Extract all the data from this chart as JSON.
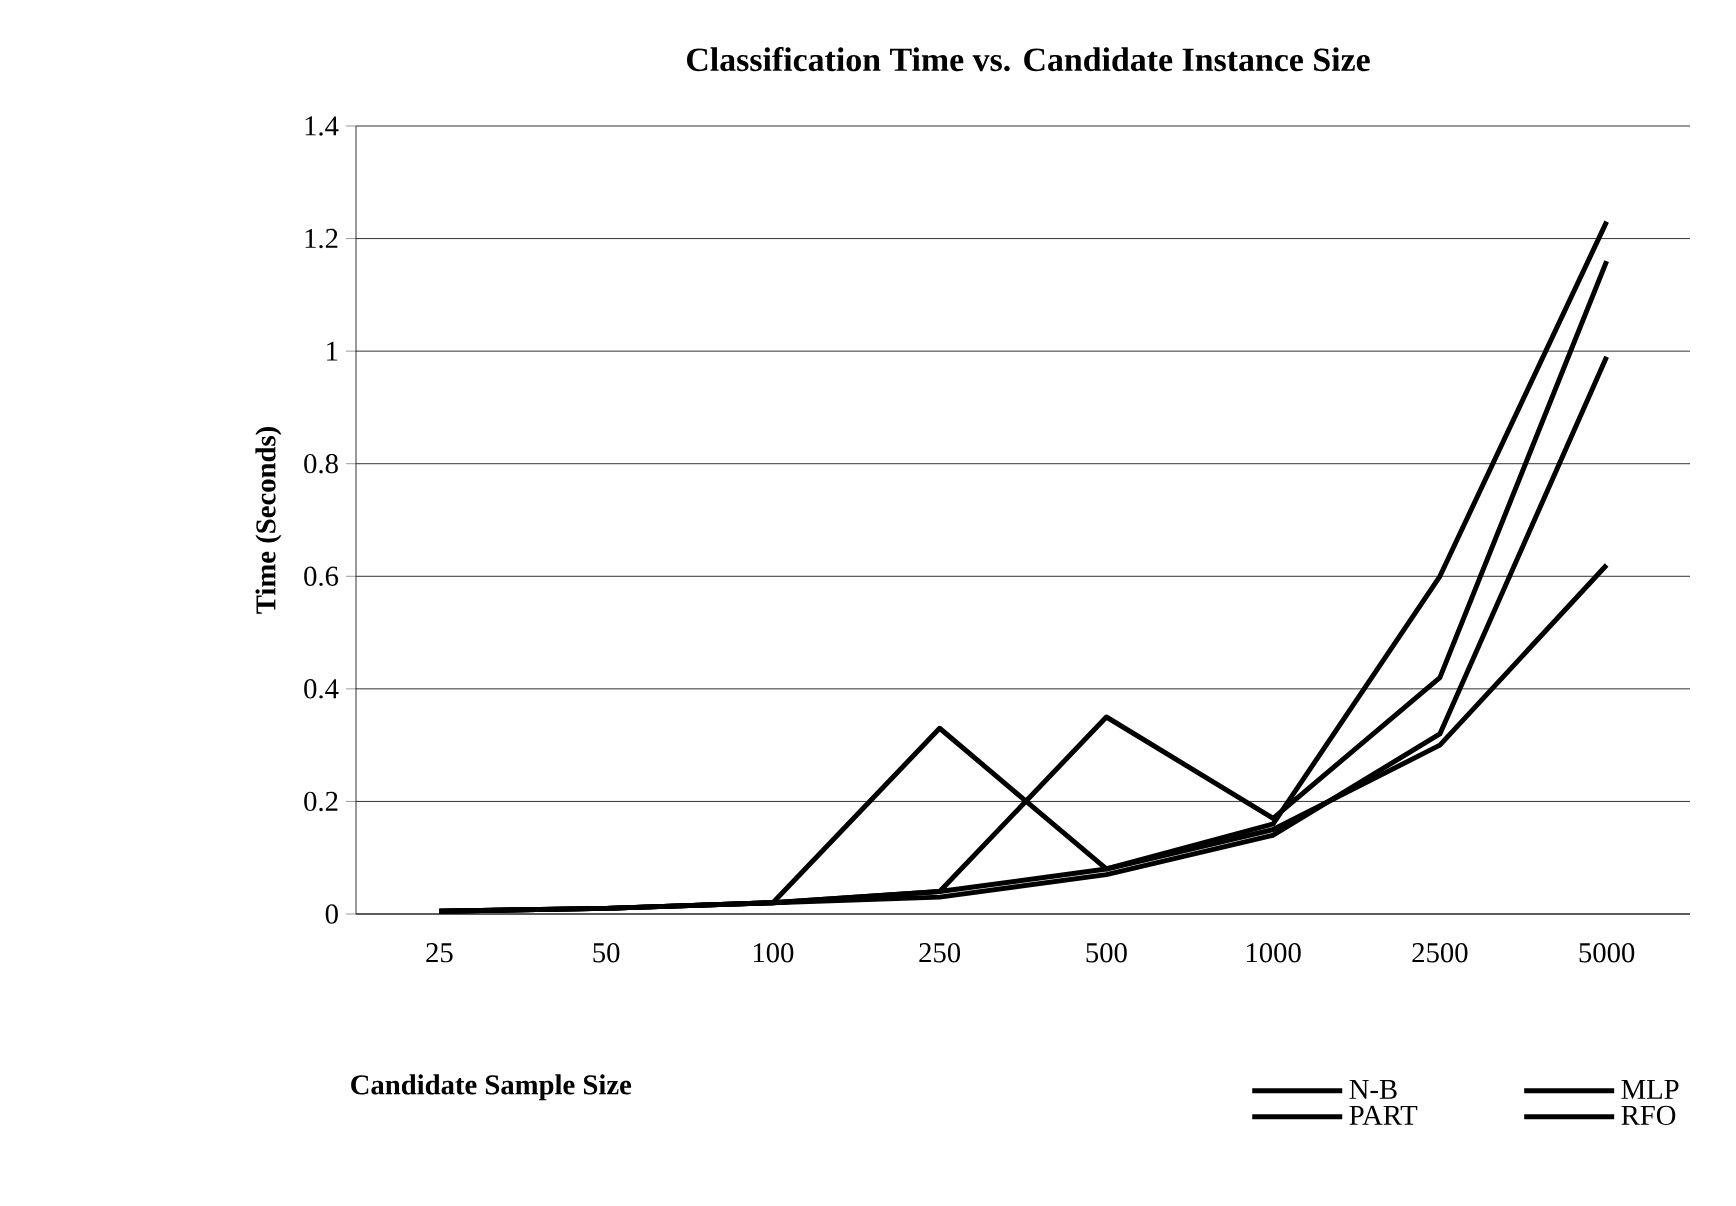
{
  "chart_data": {
    "type": "line",
    "title": "Classification Time vs. Candidate Instance Size",
    "xlabel": "Candidate Sample Size",
    "ylabel": "Time (Seconds)",
    "categories": [
      "25",
      "50",
      "100",
      "250",
      "500",
      "1000",
      "2500",
      "5000"
    ],
    "series": [
      {
        "name": "N-B",
        "color": "#000000",
        "values": [
          0.005,
          0.01,
          0.02,
          0.33,
          0.08,
          0.15,
          0.3,
          0.62
        ]
      },
      {
        "name": "MLP",
        "color": "#000000",
        "values": [
          0.005,
          0.01,
          0.02,
          0.04,
          0.35,
          0.17,
          0.42,
          1.16
        ]
      },
      {
        "name": "PART",
        "color": "#000000",
        "values": [
          0.005,
          0.01,
          0.02,
          0.04,
          0.08,
          0.16,
          0.6,
          1.23
        ]
      },
      {
        "name": "RFO",
        "color": "#000000",
        "values": [
          0.005,
          0.01,
          0.02,
          0.03,
          0.07,
          0.14,
          0.32,
          0.99
        ]
      }
    ],
    "ylim": [
      0,
      1.4
    ],
    "yticks": [
      0,
      0.2,
      0.4,
      0.6,
      0.8,
      1,
      1.2,
      1.4
    ],
    "grid": "y",
    "legend": "bottom right"
  }
}
